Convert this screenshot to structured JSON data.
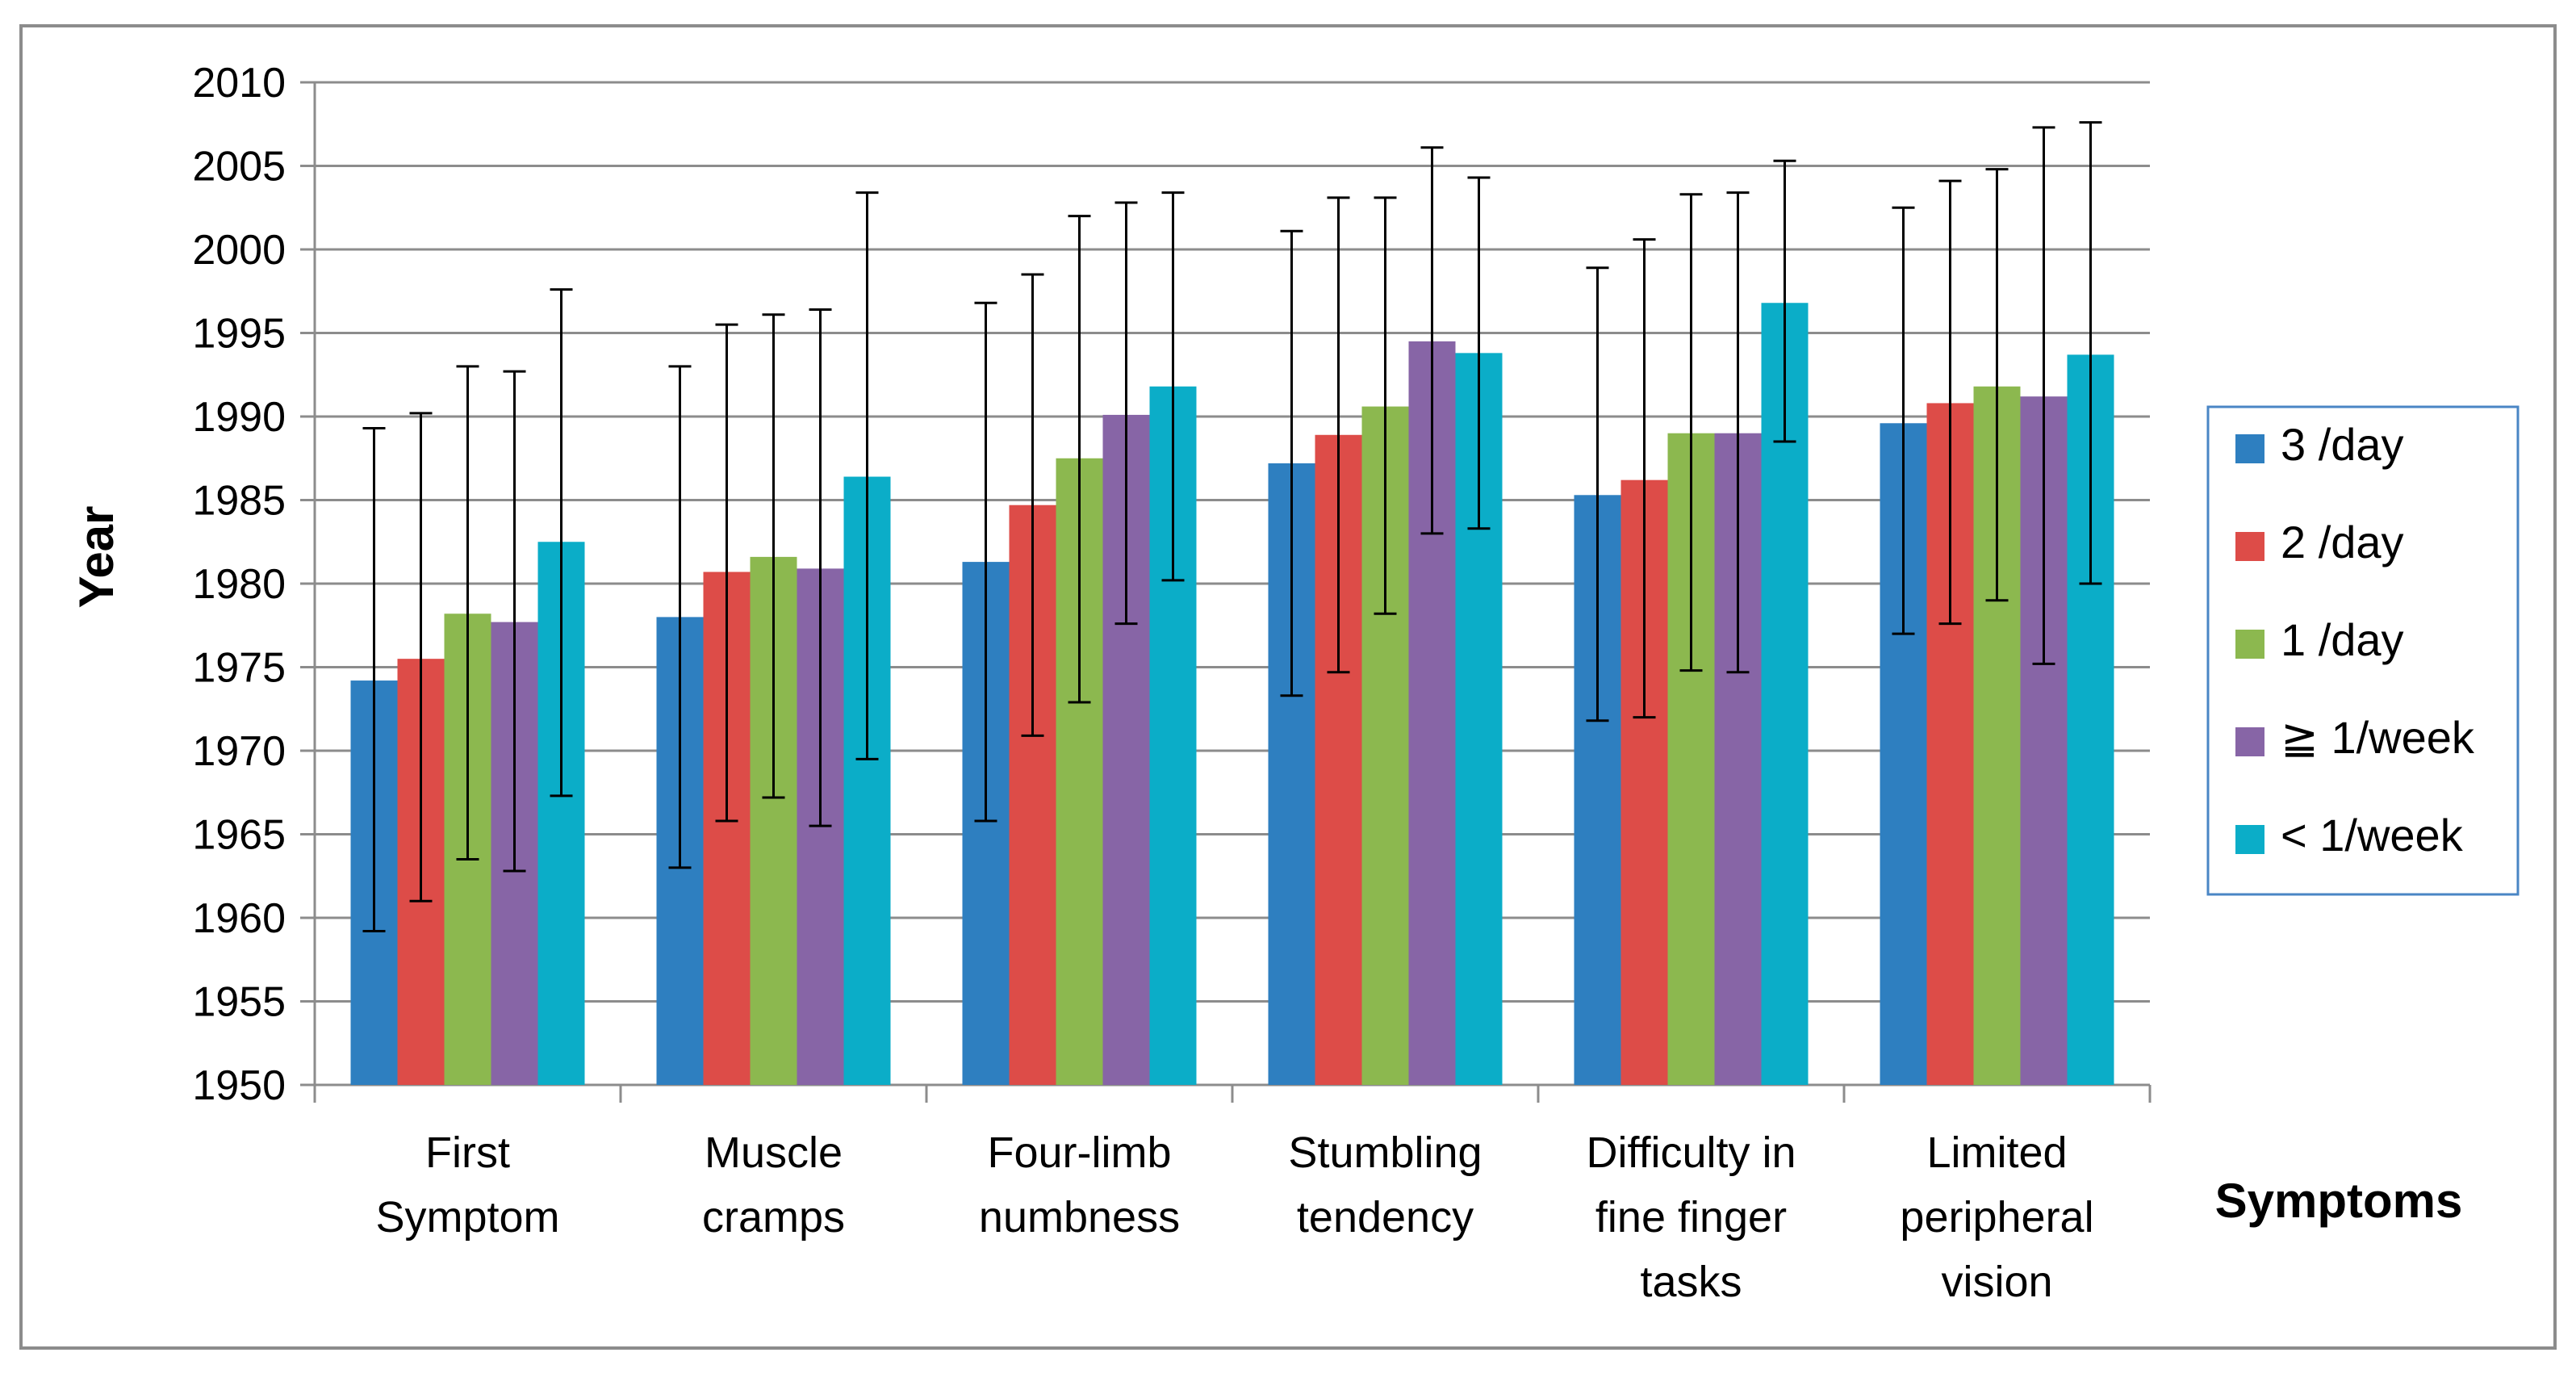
{
  "chart_data": {
    "type": "bar",
    "title": "",
    "xlabel": "Symptoms",
    "ylabel": "Year",
    "ylim": [
      1950,
      2010
    ],
    "ytick_step": 5,
    "grid": true,
    "legend_position": "right",
    "categories": [
      [
        "First",
        "Symptom"
      ],
      [
        "Muscle",
        "cramps"
      ],
      [
        "Four-limb",
        "numbness"
      ],
      [
        "Stumbling",
        "tendency"
      ],
      [
        "Difficulty in",
        "fine finger",
        "tasks"
      ],
      [
        "Limited",
        "peripheral",
        "vision"
      ]
    ],
    "series": [
      {
        "name": "3 /day",
        "color": "#2e7fc0",
        "values": [
          1974.2,
          1978.0,
          1981.3,
          1987.2,
          1985.3,
          1989.6
        ],
        "err_low": [
          1959.2,
          1963.0,
          1965.8,
          1973.3,
          1971.8,
          1977.0
        ],
        "err_high": [
          1989.3,
          1993.0,
          1996.8,
          2001.1,
          1998.9,
          2002.5
        ]
      },
      {
        "name": "2 /day",
        "color": "#dd4c48",
        "values": [
          1975.5,
          1980.7,
          1984.7,
          1988.9,
          1986.2,
          1990.8
        ],
        "err_low": [
          1961.0,
          1965.8,
          1970.9,
          1974.7,
          1972.0,
          1977.6
        ],
        "err_high": [
          1990.2,
          1995.5,
          1998.5,
          2003.1,
          2000.6,
          2004.1
        ]
      },
      {
        "name": "1 /day",
        "color": "#8cb84f",
        "values": [
          1978.2,
          1981.6,
          1987.5,
          1990.6,
          1989.0,
          1991.8
        ],
        "err_low": [
          1963.5,
          1967.2,
          1972.9,
          1978.2,
          1974.8,
          1979.0
        ],
        "err_high": [
          1993.0,
          1996.1,
          2002.0,
          2003.1,
          2003.3,
          2004.8
        ]
      },
      {
        "name": "≧ 1/week",
        "color": "#8765a6",
        "values": [
          1977.7,
          1980.9,
          1990.1,
          1994.5,
          1989.0,
          1991.2
        ],
        "err_low": [
          1962.8,
          1965.5,
          1977.6,
          1983.0,
          1974.7,
          1975.2
        ],
        "err_high": [
          1992.7,
          1996.4,
          2002.8,
          2006.1,
          2003.4,
          2007.3
        ]
      },
      {
        "name": "< 1/week",
        "color": "#0badc8",
        "values": [
          1982.5,
          1986.4,
          1991.8,
          1993.8,
          1996.8,
          1993.7
        ],
        "err_low": [
          1967.3,
          1969.5,
          1980.2,
          1983.3,
          1988.5,
          1980.0
        ],
        "err_high": [
          1997.6,
          2003.4,
          2003.4,
          2004.3,
          2005.3,
          2007.6
        ]
      }
    ]
  }
}
